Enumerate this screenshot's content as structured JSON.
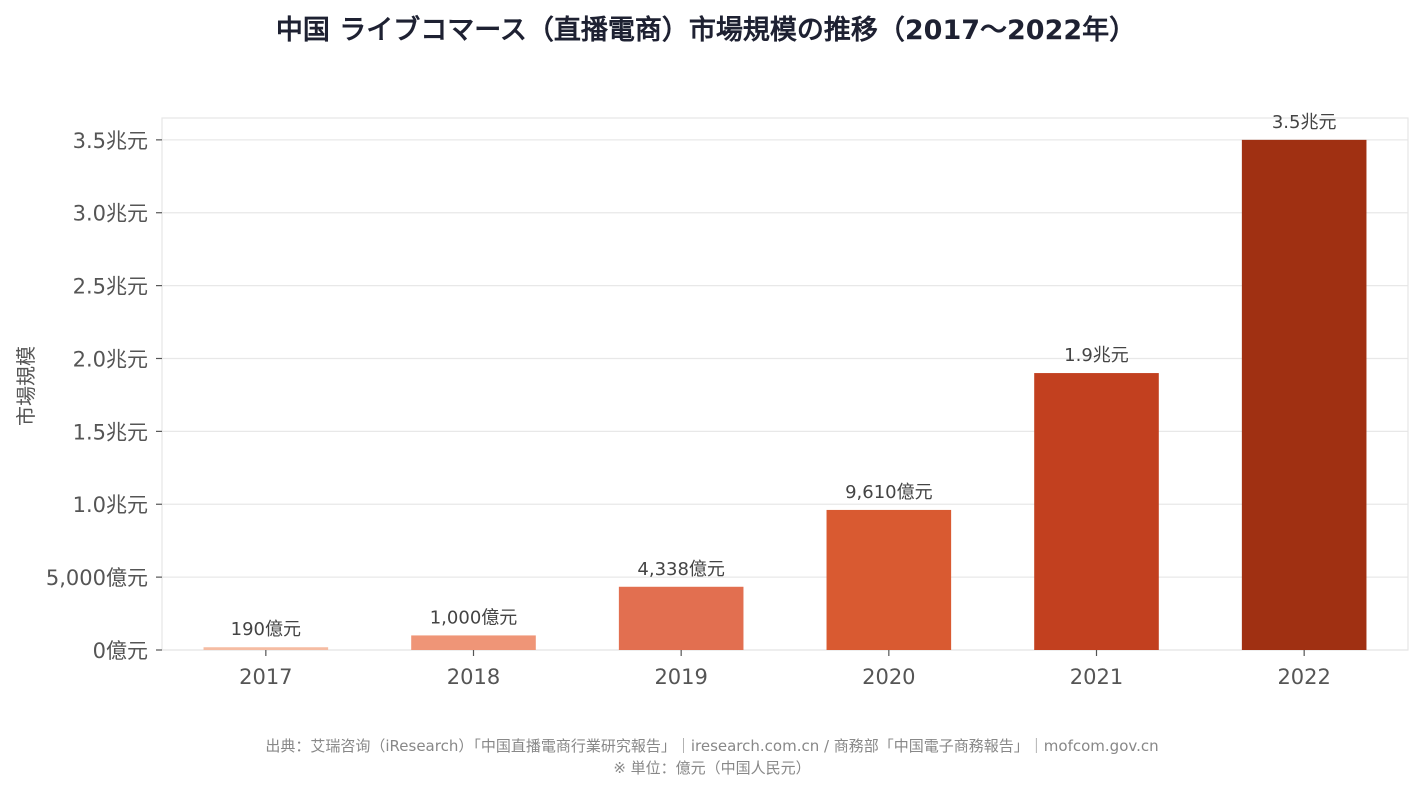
{
  "chart_data": {
    "type": "bar",
    "title": "中国 ライブコマース（直播電商）市場規模の推移（2017〜2022年）",
    "xlabel": "",
    "ylabel": "市場規模",
    "unit": "億元",
    "categories": [
      "2017",
      "2018",
      "2019",
      "2020",
      "2021",
      "2022"
    ],
    "values": [
      190,
      1000,
      4338,
      9610,
      19000,
      35000
    ],
    "value_labels": [
      "190億元",
      "1,000億元",
      "4,338億元",
      "9,610億元",
      "1.9兆元",
      "3.5兆元"
    ],
    "colors": [
      "#f5bca3",
      "#ef9577",
      "#e26f50",
      "#d95a31",
      "#c2401f",
      "#a03012"
    ],
    "ylim": [
      0,
      36500
    ],
    "yticks": [
      0,
      5000,
      10000,
      15000,
      20000,
      25000,
      30000,
      35000
    ],
    "ytick_labels": [
      "0億元",
      "5,000億元",
      "1.0兆元",
      "1.5兆元",
      "2.0兆元",
      "2.5兆元",
      "3.0兆元",
      "3.5兆元"
    ],
    "grid": true,
    "legend": "none"
  },
  "footer": {
    "source": "出典：艾瑞咨询（iResearch）「中国直播電商行業研究報告」｜iresearch.com.cn / 商務部「中国電子商務報告」｜mofcom.gov.cn",
    "unit_note": "※ 単位：億元（中国人民元）"
  }
}
